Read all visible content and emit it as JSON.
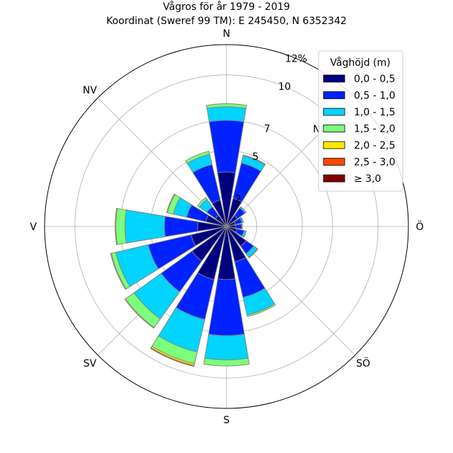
{
  "chart_data": {
    "type": "windrose",
    "title": "Vågros för år 1979 - 2019",
    "subtitle": "Koordinat (Sweref 99 TM): E 245450, N 6352342",
    "unit": "%",
    "radial_max": 12,
    "radial_ticks": [
      {
        "value": 2,
        "label": "2"
      },
      {
        "value": 5,
        "label": "5"
      },
      {
        "value": 7,
        "label": "7"
      },
      {
        "value": 10,
        "label": "10"
      },
      {
        "value": 12,
        "label": "12%"
      }
    ],
    "directions": [
      {
        "deg": 0,
        "label": "N"
      },
      {
        "deg": 45,
        "label": "NO"
      },
      {
        "deg": 90,
        "label": "Ö"
      },
      {
        "deg": 135,
        "label": "SÖ"
      },
      {
        "deg": 180,
        "label": "S"
      },
      {
        "deg": 225,
        "label": "SV"
      },
      {
        "deg": 270,
        "label": "V"
      },
      {
        "deg": 315,
        "label": "NV"
      }
    ],
    "legend": {
      "title": "Våghöjd (m)",
      "position": "top-right",
      "entries": [
        {
          "label": "0,0 - 0,5",
          "color": "#00007f"
        },
        {
          "label": "0,5 - 1,0",
          "color": "#0022ff"
        },
        {
          "label": "1,0 - 1,5",
          "color": "#00d4ff"
        },
        {
          "label": "1,5 - 2,0",
          "color": "#7cff7a"
        },
        {
          "label": "2,0 - 2,5",
          "color": "#ffe600"
        },
        {
          "label": "2,5 - 3,0",
          "color": "#ff4800"
        },
        {
          "label": "≥ 3,0",
          "color": "#7f0000"
        }
      ]
    },
    "sectors": [
      {
        "deg": 0,
        "cumulative": [
          3.6,
          7.0,
          7.9,
          8.1,
          8.1,
          8.1,
          8.1
        ]
      },
      {
        "deg": 22.5,
        "cumulative": [
          1.9,
          4.3,
          4.8,
          4.85,
          4.85,
          4.85,
          4.85
        ]
      },
      {
        "deg": 45,
        "cumulative": [
          0.9,
          1.5,
          1.6,
          1.6,
          1.6,
          1.6,
          1.6
        ]
      },
      {
        "deg": 67.5,
        "cumulative": [
          0.6,
          1.05,
          1.15,
          1.15,
          1.15,
          1.15,
          1.15
        ]
      },
      {
        "deg": 90,
        "cumulative": [
          0.6,
          1.0,
          1.05,
          1.05,
          1.05,
          1.05,
          1.05
        ]
      },
      {
        "deg": 112.5,
        "cumulative": [
          0.7,
          1.2,
          1.35,
          1.35,
          1.35,
          1.35,
          1.35
        ]
      },
      {
        "deg": 135,
        "cumulative": [
          1.6,
          2.2,
          2.5,
          2.55,
          2.55,
          2.55,
          2.55
        ]
      },
      {
        "deg": 157.5,
        "cumulative": [
          2.4,
          4.8,
          6.0,
          6.1,
          6.1,
          6.1,
          6.1
        ]
      },
      {
        "deg": 180,
        "cumulative": [
          3.5,
          7.2,
          8.8,
          9.2,
          9.2,
          9.2,
          9.2
        ]
      },
      {
        "deg": 202.5,
        "cumulative": [
          3.6,
          6.3,
          8.5,
          9.3,
          9.42,
          9.48,
          9.48
        ]
      },
      {
        "deg": 225,
        "cumulative": [
          2.8,
          5.3,
          7.5,
          8.2,
          8.25,
          8.25,
          8.25
        ]
      },
      {
        "deg": 247.5,
        "cumulative": [
          2.4,
          5.3,
          7.5,
          7.8,
          7.85,
          7.85,
          7.85
        ]
      },
      {
        "deg": 270,
        "cumulative": [
          1.9,
          4.1,
          6.7,
          7.3,
          7.35,
          7.35,
          7.35
        ]
      },
      {
        "deg": 292.5,
        "cumulative": [
          1.4,
          2.7,
          3.6,
          4.0,
          4.05,
          4.05,
          4.05
        ]
      },
      {
        "deg": 315,
        "cumulative": [
          0.9,
          1.6,
          2.2,
          2.35,
          2.35,
          2.35,
          2.35
        ]
      },
      {
        "deg": 337.5,
        "cumulative": [
          1.8,
          4.2,
          4.9,
          5.1,
          5.1,
          5.1,
          5.1
        ]
      }
    ]
  }
}
